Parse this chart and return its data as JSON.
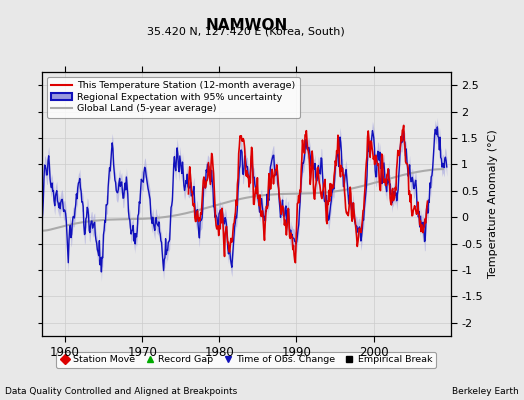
{
  "title": "NAMWON",
  "subtitle": "35.420 N, 127.420 E (Korea, South)",
  "xlabel_bottom": "Data Quality Controlled and Aligned at Breakpoints",
  "xlabel_right": "Berkeley Earth",
  "ylabel": "Temperature Anomaly (°C)",
  "xlim": [
    1957,
    2010
  ],
  "ylim": [
    -2.25,
    2.75
  ],
  "yticks": [
    -2,
    -1.5,
    -1,
    -0.5,
    0,
    0.5,
    1,
    1.5,
    2,
    2.5
  ],
  "xticks": [
    1960,
    1970,
    1980,
    1990,
    2000
  ],
  "grid_color": "#cccccc",
  "bg_color": "#e8e8e8",
  "station_color": "#dd0000",
  "regional_color": "#1111bb",
  "regional_fill_color": "#9999dd",
  "global_color": "#aaaaaa",
  "station_start": 1976,
  "station_end": 2007,
  "legend_items": [
    {
      "label": "This Temperature Station (12-month average)",
      "color": "#dd0000"
    },
    {
      "label": "Regional Expectation with 95% uncertainty",
      "color": "#1111bb"
    },
    {
      "label": "Global Land (5-year average)",
      "color": "#aaaaaa"
    }
  ],
  "bottom_legend": [
    {
      "label": "Station Move",
      "marker": "D",
      "color": "#dd0000"
    },
    {
      "label": "Record Gap",
      "marker": "^",
      "color": "#00aa00"
    },
    {
      "label": "Time of Obs. Change",
      "marker": "v",
      "color": "#1111bb"
    },
    {
      "label": "Empirical Break",
      "marker": "s",
      "color": "black"
    }
  ]
}
